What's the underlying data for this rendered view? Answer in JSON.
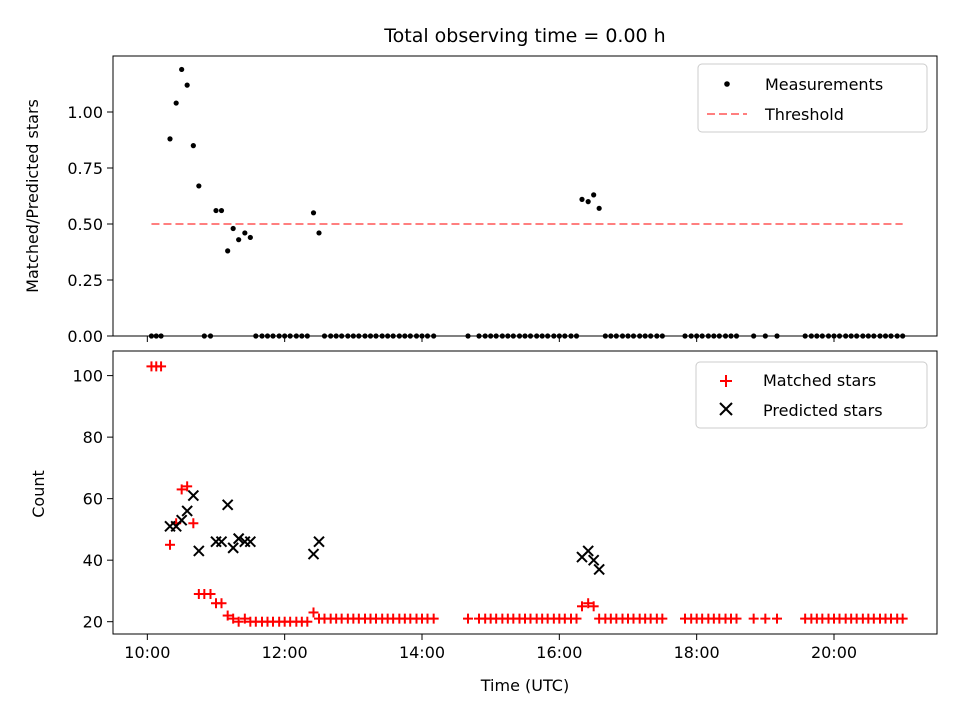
{
  "chart_data": [
    {
      "type": "scatter",
      "title": "Total observing time = 0.00 h",
      "xlabel": "",
      "ylabel": "Matched/Predicted stars",
      "xlim": [
        9.5,
        21.5
      ],
      "ylim": [
        0,
        1.25
      ],
      "yticks": [
        "0.00",
        "0.25",
        "0.50",
        "0.75",
        "1.00"
      ],
      "xticks": [
        "10:00",
        "12:00",
        "14:00",
        "16:00",
        "18:00",
        "20:00"
      ],
      "legend": "top-right",
      "series": [
        {
          "name": "Measurements",
          "marker": "dot",
          "color": "#000000",
          "points": [
            [
              10.06,
              0
            ],
            [
              10.13,
              0
            ],
            [
              10.2,
              0
            ],
            [
              10.33,
              0.88
            ],
            [
              10.42,
              1.04
            ],
            [
              10.5,
              1.19
            ],
            [
              10.58,
              1.12
            ],
            [
              10.67,
              0.85
            ],
            [
              10.75,
              0.67
            ],
            [
              10.83,
              0
            ],
            [
              10.92,
              0
            ],
            [
              11.0,
              0.56
            ],
            [
              11.08,
              0.56
            ],
            [
              11.17,
              0.38
            ],
            [
              11.25,
              0.48
            ],
            [
              11.33,
              0.43
            ],
            [
              11.42,
              0.46
            ],
            [
              11.5,
              0.44
            ],
            [
              11.58,
              0
            ],
            [
              11.67,
              0
            ],
            [
              11.75,
              0
            ],
            [
              11.83,
              0
            ],
            [
              11.92,
              0
            ],
            [
              12.0,
              0
            ],
            [
              12.08,
              0
            ],
            [
              12.17,
              0
            ],
            [
              12.25,
              0
            ],
            [
              12.33,
              0
            ],
            [
              12.42,
              0.55
            ],
            [
              12.5,
              0.46
            ],
            [
              12.58,
              0
            ],
            [
              12.67,
              0
            ],
            [
              12.75,
              0
            ],
            [
              12.83,
              0
            ],
            [
              12.92,
              0
            ],
            [
              13.0,
              0
            ],
            [
              13.08,
              0
            ],
            [
              13.17,
              0
            ],
            [
              13.25,
              0
            ],
            [
              13.33,
              0
            ],
            [
              13.42,
              0
            ],
            [
              13.5,
              0
            ],
            [
              13.58,
              0
            ],
            [
              13.67,
              0
            ],
            [
              13.75,
              0
            ],
            [
              13.83,
              0
            ],
            [
              13.92,
              0
            ],
            [
              14.0,
              0
            ],
            [
              14.08,
              0
            ],
            [
              14.17,
              0
            ],
            [
              14.67,
              0
            ],
            [
              14.83,
              0
            ],
            [
              14.92,
              0
            ],
            [
              15.0,
              0
            ],
            [
              15.08,
              0
            ],
            [
              15.17,
              0
            ],
            [
              15.25,
              0
            ],
            [
              15.33,
              0
            ],
            [
              15.42,
              0
            ],
            [
              15.5,
              0
            ],
            [
              15.58,
              0
            ],
            [
              15.67,
              0
            ],
            [
              15.75,
              0
            ],
            [
              15.83,
              0
            ],
            [
              15.92,
              0
            ],
            [
              16.0,
              0
            ],
            [
              16.08,
              0
            ],
            [
              16.17,
              0
            ],
            [
              16.25,
              0
            ],
            [
              16.33,
              0.61
            ],
            [
              16.42,
              0.6
            ],
            [
              16.5,
              0.63
            ],
            [
              16.58,
              0.57
            ],
            [
              16.67,
              0
            ],
            [
              16.75,
              0
            ],
            [
              16.83,
              0
            ],
            [
              16.92,
              0
            ],
            [
              17.0,
              0
            ],
            [
              17.08,
              0
            ],
            [
              17.17,
              0
            ],
            [
              17.25,
              0
            ],
            [
              17.33,
              0
            ],
            [
              17.42,
              0
            ],
            [
              17.5,
              0
            ],
            [
              17.83,
              0
            ],
            [
              17.92,
              0
            ],
            [
              18.0,
              0
            ],
            [
              18.08,
              0
            ],
            [
              18.17,
              0
            ],
            [
              18.25,
              0
            ],
            [
              18.33,
              0
            ],
            [
              18.42,
              0
            ],
            [
              18.5,
              0
            ],
            [
              18.58,
              0
            ],
            [
              18.83,
              0
            ],
            [
              19.0,
              0
            ],
            [
              19.17,
              0
            ],
            [
              19.58,
              0
            ],
            [
              19.67,
              0
            ],
            [
              19.75,
              0
            ],
            [
              19.83,
              0
            ],
            [
              19.92,
              0
            ],
            [
              20.0,
              0
            ],
            [
              20.08,
              0
            ],
            [
              20.17,
              0
            ],
            [
              20.25,
              0
            ],
            [
              20.33,
              0
            ],
            [
              20.42,
              0
            ],
            [
              20.5,
              0
            ],
            [
              20.58,
              0
            ],
            [
              20.67,
              0
            ],
            [
              20.75,
              0
            ],
            [
              20.83,
              0
            ],
            [
              20.92,
              0
            ],
            [
              21.0,
              0
            ]
          ]
        },
        {
          "name": "Threshold",
          "marker": "dashed-line",
          "color": "#ff7f7f",
          "points": [
            [
              10.06,
              0.5
            ],
            [
              21.0,
              0.5
            ]
          ]
        }
      ]
    },
    {
      "type": "scatter",
      "title": "",
      "xlabel": "Time (UTC)",
      "ylabel": "Count",
      "xlim": [
        9.5,
        21.5
      ],
      "ylim": [
        16,
        108
      ],
      "yticks": [
        "20",
        "40",
        "60",
        "80",
        "100"
      ],
      "xticks": [
        "10:00",
        "12:00",
        "14:00",
        "16:00",
        "18:00",
        "20:00"
      ],
      "legend": "top-right",
      "series": [
        {
          "name": "Matched stars",
          "marker": "plus",
          "color": "#ff0000",
          "points": [
            [
              10.06,
              103
            ],
            [
              10.13,
              103
            ],
            [
              10.2,
              103
            ],
            [
              10.33,
              45
            ],
            [
              10.42,
              52
            ],
            [
              10.5,
              63
            ],
            [
              10.58,
              64
            ],
            [
              10.67,
              52
            ],
            [
              10.75,
              29
            ],
            [
              10.83,
              29
            ],
            [
              10.92,
              29
            ],
            [
              11.0,
              26
            ],
            [
              11.08,
              26
            ],
            [
              11.17,
              22
            ],
            [
              11.25,
              21
            ],
            [
              11.33,
              20
            ],
            [
              11.42,
              21
            ],
            [
              11.5,
              20
            ],
            [
              11.58,
              20
            ],
            [
              11.67,
              20
            ],
            [
              11.75,
              20
            ],
            [
              11.83,
              20
            ],
            [
              11.92,
              20
            ],
            [
              12.0,
              20
            ],
            [
              12.08,
              20
            ],
            [
              12.17,
              20
            ],
            [
              12.25,
              20
            ],
            [
              12.33,
              20
            ],
            [
              12.42,
              23
            ],
            [
              12.5,
              21
            ],
            [
              12.58,
              21
            ],
            [
              12.67,
              21
            ],
            [
              12.75,
              21
            ],
            [
              12.83,
              21
            ],
            [
              12.92,
              21
            ],
            [
              13.0,
              21
            ],
            [
              13.08,
              21
            ],
            [
              13.17,
              21
            ],
            [
              13.25,
              21
            ],
            [
              13.33,
              21
            ],
            [
              13.42,
              21
            ],
            [
              13.5,
              21
            ],
            [
              13.58,
              21
            ],
            [
              13.67,
              21
            ],
            [
              13.75,
              21
            ],
            [
              13.83,
              21
            ],
            [
              13.92,
              21
            ],
            [
              14.0,
              21
            ],
            [
              14.08,
              21
            ],
            [
              14.17,
              21
            ],
            [
              14.67,
              21
            ],
            [
              14.83,
              21
            ],
            [
              14.92,
              21
            ],
            [
              15.0,
              21
            ],
            [
              15.08,
              21
            ],
            [
              15.17,
              21
            ],
            [
              15.25,
              21
            ],
            [
              15.33,
              21
            ],
            [
              15.42,
              21
            ],
            [
              15.5,
              21
            ],
            [
              15.58,
              21
            ],
            [
              15.67,
              21
            ],
            [
              15.75,
              21
            ],
            [
              15.83,
              21
            ],
            [
              15.92,
              21
            ],
            [
              16.0,
              21
            ],
            [
              16.08,
              21
            ],
            [
              16.17,
              21
            ],
            [
              16.25,
              21
            ],
            [
              16.33,
              25
            ],
            [
              16.42,
              26
            ],
            [
              16.5,
              25
            ],
            [
              16.58,
              21
            ],
            [
              16.67,
              21
            ],
            [
              16.75,
              21
            ],
            [
              16.83,
              21
            ],
            [
              16.92,
              21
            ],
            [
              17.0,
              21
            ],
            [
              17.08,
              21
            ],
            [
              17.17,
              21
            ],
            [
              17.25,
              21
            ],
            [
              17.33,
              21
            ],
            [
              17.42,
              21
            ],
            [
              17.5,
              21
            ],
            [
              17.83,
              21
            ],
            [
              17.92,
              21
            ],
            [
              18.0,
              21
            ],
            [
              18.08,
              21
            ],
            [
              18.17,
              21
            ],
            [
              18.25,
              21
            ],
            [
              18.33,
              21
            ],
            [
              18.42,
              21
            ],
            [
              18.5,
              21
            ],
            [
              18.58,
              21
            ],
            [
              18.83,
              21
            ],
            [
              19.0,
              21
            ],
            [
              19.17,
              21
            ],
            [
              19.58,
              21
            ],
            [
              19.67,
              21
            ],
            [
              19.75,
              21
            ],
            [
              19.83,
              21
            ],
            [
              19.92,
              21
            ],
            [
              20.0,
              21
            ],
            [
              20.08,
              21
            ],
            [
              20.17,
              21
            ],
            [
              20.25,
              21
            ],
            [
              20.33,
              21
            ],
            [
              20.42,
              21
            ],
            [
              20.5,
              21
            ],
            [
              20.58,
              21
            ],
            [
              20.67,
              21
            ],
            [
              20.75,
              21
            ],
            [
              20.83,
              21
            ],
            [
              20.92,
              21
            ],
            [
              21.0,
              21
            ]
          ]
        },
        {
          "name": "Predicted stars",
          "marker": "x",
          "color": "#000000",
          "points": [
            [
              10.33,
              51
            ],
            [
              10.42,
              51
            ],
            [
              10.5,
              53
            ],
            [
              10.58,
              56
            ],
            [
              10.67,
              61
            ],
            [
              10.75,
              43
            ],
            [
              11.0,
              46
            ],
            [
              11.08,
              46
            ],
            [
              11.17,
              58
            ],
            [
              11.25,
              44
            ],
            [
              11.33,
              47
            ],
            [
              11.42,
              46
            ],
            [
              11.5,
              46
            ],
            [
              12.42,
              42
            ],
            [
              12.5,
              46
            ],
            [
              16.33,
              41
            ],
            [
              16.42,
              43
            ],
            [
              16.5,
              40
            ],
            [
              16.58,
              37
            ]
          ]
        }
      ]
    }
  ]
}
